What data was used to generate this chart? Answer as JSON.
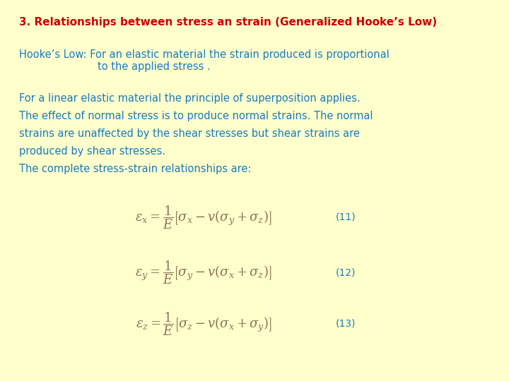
{
  "background_color": "#FFFFCC",
  "title_text": "3. Relationships between stress an strain (Generalized Hooke’s Low)",
  "title_color": "#CC0000",
  "title_fontsize": 11,
  "hookes_line1": "Hooke’s Low: For an elastic material the strain produced is proportional",
  "hookes_line2": "                        to the applied stress .",
  "hookes_color": "#1a7abf",
  "hookes_fontsize": 10.5,
  "body_text_color": "#1a7abf",
  "body_fontsize": 10.5,
  "para1_line1": "For a linear elastic material the principle of superposition applies.",
  "para1_line2": "The effect of normal stress is to produce normal strains. The normal",
  "para1_line3": "strains are unaffected by the shear stresses but shear strains are",
  "para1_line4": "produced by shear stresses.",
  "para1_line5": "The complete stress-strain relationships are:",
  "eq1": "\\varepsilon_x = \\dfrac{1}{E}\\left[\\sigma_x - v(\\sigma_y + \\sigma_z)\\right]",
  "eq2": "\\varepsilon_y = \\dfrac{1}{E}\\left[\\sigma_y - v(\\sigma_x + \\sigma_z)\\right]",
  "eq3": "\\varepsilon_z = \\dfrac{1}{E}\\left[\\sigma_z - v(\\sigma_x + \\sigma_y)\\right]",
  "eq_color": "#8B7355",
  "eq_label_color": "#1a7abf",
  "eq_label1": "(11)",
  "eq_label2": "(12)",
  "eq_label3": "(13)",
  "eq_fontsize": 13,
  "eq_label_fontsize": 10
}
